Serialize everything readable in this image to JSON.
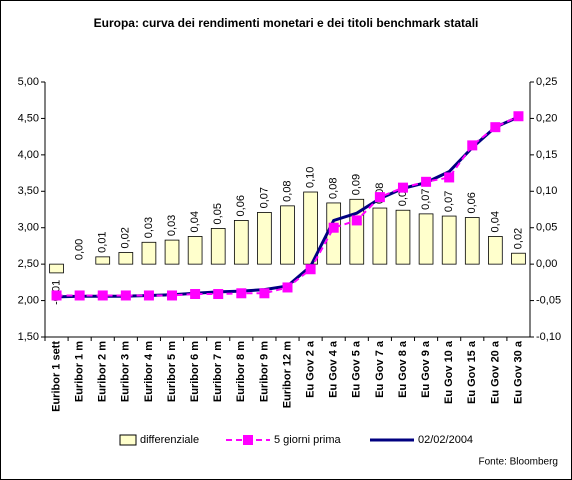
{
  "chart_data": {
    "type": "bar_line",
    "title": "Europa: curva dei rendimenti monetari e dei titoli benchmark statali",
    "source": "Fonte: Bloomberg",
    "categories": [
      "Euribor 1 sett",
      "Euribor 1 m",
      "Euribor 2 m",
      "Euribor 3 m",
      "Euribor 4 m",
      "Euribor 5 m",
      "Euribor 6 m",
      "Euribor 7 m",
      "Euribor 8 m",
      "Euribor 9 m",
      "Euribor 12 m",
      "Eu Gov 2 a",
      "Eu Gov 4 a",
      "Eu Gov 5 a",
      "Eu Gov 7 a",
      "Eu Gov 8 a",
      "Eu Gov 9 a",
      "Eu Gov 10 a",
      "Eu Gov 15 a",
      "Eu Gov 20 a",
      "Eu Gov 30 a"
    ],
    "ylim": [
      1.5,
      5.0
    ],
    "yticks": [
      {
        "value": 1.5,
        "label": "1,50"
      },
      {
        "value": 2.0,
        "label": "2,00"
      },
      {
        "value": 2.5,
        "label": "2,50"
      },
      {
        "value": 3.0,
        "label": "3,00"
      },
      {
        "value": 3.5,
        "label": "3,50"
      },
      {
        "value": 4.0,
        "label": "4,00"
      },
      {
        "value": 4.5,
        "label": "4,50"
      },
      {
        "value": 5.0,
        "label": "5,00"
      }
    ],
    "y2lim": [
      -0.1,
      0.25
    ],
    "y2ticks": [
      {
        "value": -0.1,
        "label": "-0,10"
      },
      {
        "value": -0.05,
        "label": "-0,05"
      },
      {
        "value": 0,
        "label": "0,00"
      },
      {
        "value": 0.05,
        "label": "0,05"
      },
      {
        "value": 0.1,
        "label": "0,10"
      },
      {
        "value": 0.15,
        "label": "0,15"
      },
      {
        "value": 0.2,
        "label": "0,20"
      },
      {
        "value": 0.25,
        "label": "0,25"
      }
    ],
    "grid": false,
    "series": [
      {
        "name": "differenziale",
        "kind": "bar",
        "axis": "y2",
        "color": "#ffffcc",
        "values": [
          -0.012,
          0.0,
          0.01,
          0.016,
          0.03,
          0.033,
          0.038,
          0.049,
          0.06,
          0.071,
          0.08,
          0.099,
          0.084,
          0.089,
          0.077,
          0.074,
          0.069,
          0.066,
          0.064,
          0.038,
          0.015
        ],
        "value_labels": [
          "-0,01",
          "0,00",
          "0,01",
          "0,02",
          "0,03",
          "0,03",
          "0,04",
          "0,05",
          "0,06",
          "0,07",
          "0,08",
          "0,10",
          "0,08",
          "0,09",
          "0,08",
          "0,07",
          "0,07",
          "0,07",
          "0,06",
          "0,04",
          "0,02"
        ]
      },
      {
        "name": "5 giorni prima",
        "kind": "line",
        "dashed": true,
        "markers": true,
        "color": "#ff00ff",
        "values": [
          2.07,
          2.07,
          2.07,
          2.07,
          2.07,
          2.07,
          2.09,
          2.09,
          2.1,
          2.1,
          2.18,
          2.43,
          3.0,
          3.1,
          3.42,
          3.55,
          3.63,
          3.69,
          4.13,
          4.38,
          4.53
        ]
      },
      {
        "name": "02/02/2004",
        "kind": "line",
        "color": "#000080",
        "values": [
          2.05,
          2.06,
          2.06,
          2.06,
          2.07,
          2.08,
          2.1,
          2.12,
          2.13,
          2.15,
          2.2,
          2.47,
          3.1,
          3.2,
          3.4,
          3.54,
          3.62,
          3.77,
          4.1,
          4.38,
          4.52
        ]
      }
    ]
  }
}
